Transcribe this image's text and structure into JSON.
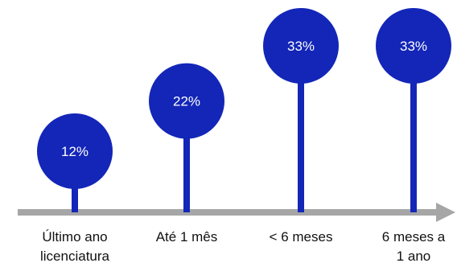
{
  "chart_data": {
    "type": "lollipop",
    "categories": [
      [
        "Último ano",
        "licenciatura"
      ],
      [
        "Até 1 mês"
      ],
      [
        "< 6 meses"
      ],
      [
        "6 meses a",
        "1 ano"
      ]
    ],
    "values": [
      12,
      22,
      33,
      33
    ],
    "value_labels": [
      "12%",
      "22%",
      "33%",
      "33%"
    ],
    "ylim": [
      0,
      33
    ],
    "grid": false,
    "legend": "none",
    "colors": {
      "marker": "#1326B8",
      "axis": "#A6A6A6",
      "label_text": "#ffffff",
      "category_text": "#111111"
    }
  }
}
